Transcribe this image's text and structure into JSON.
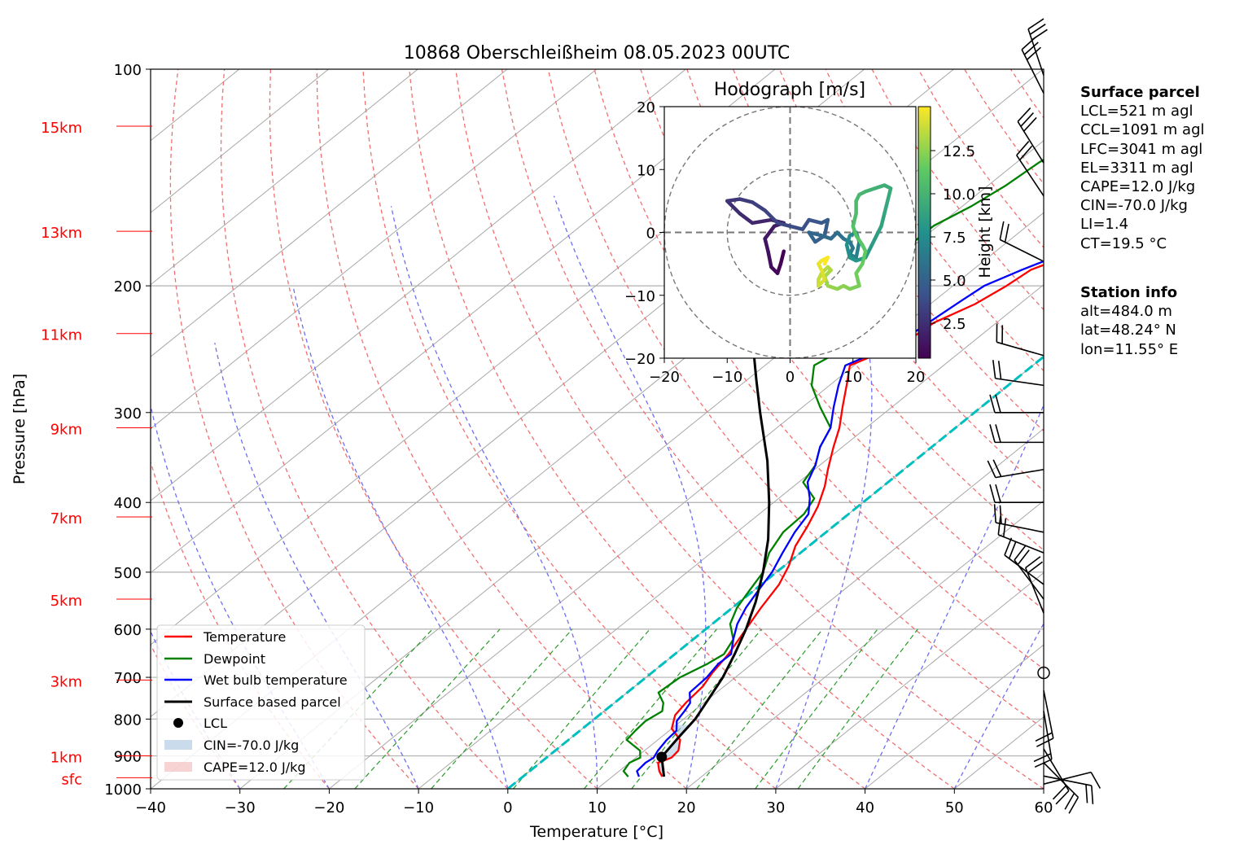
{
  "chart_data": {
    "type": "skew-t",
    "title": "10868 Oberschleißheim 08.05.2023 00UTC",
    "xlabel": "Temperature [°C]",
    "ylabel": "Pressure [hPa]",
    "xlim": [
      -40,
      60
    ],
    "ylim": [
      1000,
      100
    ],
    "log_y": true,
    "grid": true,
    "x_ticks": [
      "−40",
      "−30",
      "−20",
      "−10",
      "0",
      "10",
      "20",
      "30",
      "40",
      "50",
      "60"
    ],
    "y_ticks": [
      {
        "p": 100,
        "label": "100"
      },
      {
        "p": 200,
        "label": "200"
      },
      {
        "p": 300,
        "label": "300"
      },
      {
        "p": 400,
        "label": "400"
      },
      {
        "p": 500,
        "label": "500"
      },
      {
        "p": 600,
        "label": "600"
      },
      {
        "p": 700,
        "label": "700"
      },
      {
        "p": 800,
        "label": "800"
      },
      {
        "p": 900,
        "label": "900"
      },
      {
        "p": 1000,
        "label": "1000"
      }
    ],
    "height_labels": [
      {
        "p": 965,
        "label": "sfc"
      },
      {
        "p": 900,
        "label": "1km"
      },
      {
        "p": 706,
        "label": "3km"
      },
      {
        "p": 545,
        "label": "5km"
      },
      {
        "p": 419,
        "label": "7km"
      },
      {
        "p": 315,
        "label": "9km"
      },
      {
        "p": 233,
        "label": "11km"
      },
      {
        "p": 168,
        "label": "13km"
      },
      {
        "p": 120,
        "label": "15km"
      }
    ],
    "series": [
      {
        "name": "Temperature",
        "color": "#ff0000",
        "points": [
          [
            15.6,
            962
          ],
          [
            14.5,
            945
          ],
          [
            13.2,
            920
          ],
          [
            14.0,
            905
          ],
          [
            13.8,
            885
          ],
          [
            12.5,
            855
          ],
          [
            10.0,
            825
          ],
          [
            8.5,
            790
          ],
          [
            8.0,
            760
          ],
          [
            7.6,
            720
          ],
          [
            6.8,
            690
          ],
          [
            6.0,
            650
          ],
          [
            4.5,
            600
          ],
          [
            3.2,
            560
          ],
          [
            2.0,
            520
          ],
          [
            0.5,
            490
          ],
          [
            -1.5,
            460
          ],
          [
            -3.0,
            430
          ],
          [
            -4.5,
            405
          ],
          [
            -6.5,
            380
          ],
          [
            -8.5,
            360
          ],
          [
            -11.0,
            335
          ],
          [
            -13.0,
            315
          ],
          [
            -15.5,
            295
          ],
          [
            -18.5,
            272
          ],
          [
            -20.5,
            258
          ],
          [
            -17.5,
            240
          ],
          [
            -17.0,
            225
          ],
          [
            -15.0,
            212
          ],
          [
            -14.0,
            200
          ],
          [
            -13.5,
            190
          ],
          [
            -10.0,
            177
          ],
          [
            -7.0,
            168
          ],
          [
            -5.5,
            160
          ],
          [
            -4.0,
            150
          ],
          [
            -2.0,
            138
          ],
          [
            -0.5,
            128
          ],
          [
            1.0,
            118
          ],
          [
            2.5,
            111
          ],
          [
            4.8,
            106
          ]
        ]
      },
      {
        "name": "Dewpoint",
        "color": "#008000",
        "points": [
          [
            11.8,
            962
          ],
          [
            10.5,
            945
          ],
          [
            10.0,
            920
          ],
          [
            10.5,
            905
          ],
          [
            9.5,
            885
          ],
          [
            6.5,
            855
          ],
          [
            6.2,
            830
          ],
          [
            6.0,
            805
          ],
          [
            6.5,
            780
          ],
          [
            5.5,
            760
          ],
          [
            3.5,
            735
          ],
          [
            3.8,
            700
          ],
          [
            5.0,
            670
          ],
          [
            5.5,
            650
          ],
          [
            4.5,
            620
          ],
          [
            2.0,
            590
          ],
          [
            0.5,
            560
          ],
          [
            -0.5,
            530
          ],
          [
            -1.5,
            500
          ],
          [
            -3.5,
            470
          ],
          [
            -4.8,
            440
          ],
          [
            -5.0,
            415
          ],
          [
            -6.0,
            395
          ],
          [
            -9.5,
            375
          ],
          [
            -10.5,
            355
          ],
          [
            -12.5,
            335
          ],
          [
            -14.0,
            315
          ],
          [
            -18.0,
            295
          ],
          [
            -22.0,
            275
          ],
          [
            -24.5,
            258
          ],
          [
            -23.5,
            245
          ],
          [
            -22.5,
            235
          ],
          [
            -23.0,
            222
          ],
          [
            -27.5,
            208
          ],
          [
            -30.0,
            200
          ],
          [
            -30.0,
            190
          ],
          [
            -30.5,
            177
          ],
          [
            -30.5,
            165
          ],
          [
            -29.0,
            155
          ],
          [
            -28.0,
            145
          ],
          [
            -27.5,
            135
          ],
          [
            -26.5,
            125
          ],
          [
            -25.5,
            118
          ],
          [
            -25.0,
            115
          ]
        ]
      },
      {
        "name": "Wet bulb temperature",
        "color": "#0000ff",
        "points": [
          [
            13.0,
            962
          ],
          [
            12.0,
            945
          ],
          [
            11.8,
            920
          ],
          [
            12.0,
            905
          ],
          [
            11.5,
            885
          ],
          [
            11.0,
            855
          ],
          [
            10.8,
            830
          ],
          [
            9.5,
            805
          ],
          [
            9.0,
            780
          ],
          [
            8.5,
            760
          ],
          [
            7.0,
            735
          ],
          [
            6.8,
            700
          ],
          [
            6.2,
            670
          ],
          [
            6.3,
            650
          ],
          [
            4.5,
            620
          ],
          [
            2.8,
            590
          ],
          [
            1.5,
            560
          ],
          [
            0.5,
            530
          ],
          [
            -0.5,
            500
          ],
          [
            -2.0,
            470
          ],
          [
            -3.5,
            440
          ],
          [
            -4.5,
            415
          ],
          [
            -6.5,
            395
          ],
          [
            -9.0,
            375
          ],
          [
            -10.5,
            355
          ],
          [
            -12.5,
            335
          ],
          [
            -14.0,
            315
          ],
          [
            -16.5,
            295
          ],
          [
            -19.0,
            275
          ],
          [
            -21.0,
            258
          ],
          [
            -19.0,
            245
          ],
          [
            -18.0,
            235
          ],
          [
            -17.5,
            222
          ],
          [
            -17.0,
            210
          ],
          [
            -16.5,
            200
          ],
          [
            -14.5,
            190
          ],
          [
            -11.5,
            178
          ],
          [
            -8.0,
            168
          ],
          [
            -6.0,
            158
          ],
          [
            -4.0,
            148
          ],
          [
            -2.0,
            138
          ],
          [
            -0.5,
            128
          ],
          [
            1.0,
            118
          ],
          [
            2.5,
            111
          ],
          [
            4.5,
            106
          ]
        ]
      },
      {
        "name": "Surface based parcel",
        "color": "#000000",
        "points": [
          [
            15.8,
            962
          ],
          [
            12.8,
            903
          ],
          [
            12.0,
            850
          ],
          [
            11.3,
            800
          ],
          [
            10.0,
            750
          ],
          [
            8.6,
            700
          ],
          [
            6.7,
            650
          ],
          [
            4.5,
            600
          ],
          [
            1.8,
            550
          ],
          [
            -1.5,
            500
          ],
          [
            -5.5,
            450
          ],
          [
            -10.5,
            400
          ],
          [
            -16.5,
            350
          ],
          [
            -24.0,
            300
          ],
          [
            -29.0,
            270
          ],
          [
            -34.5,
            240
          ],
          [
            -40.0,
            210
          ],
          [
            -45.5,
            185
          ],
          [
            -51.5,
            160
          ],
          [
            -58.0,
            135
          ],
          [
            -62.0,
            120
          ]
        ]
      }
    ],
    "lcl": {
      "name": "LCL",
      "t": 12.8,
      "p": 903
    },
    "legend": {
      "placement": "lower-left",
      "entries": [
        "Temperature",
        "Dewpoint",
        "Wet bulb temperature",
        "Surface based parcel",
        "LCL",
        "CIN=-70.0 J/kg",
        "CAPE=12.0 J/kg"
      ]
    },
    "shaded": {
      "cin": {
        "label": "CIN=-70.0 J/kg",
        "color": "#a7c5e0"
      },
      "cape": {
        "label": "CAPE=12.0 J/kg",
        "color": "#f4b6b6"
      }
    },
    "isotherm_0": {
      "color": "#00bfbf"
    },
    "hodograph": {
      "title": "Hodograph [m/s]",
      "xlim": [
        -20,
        20
      ],
      "ylim": [
        -20,
        20
      ],
      "ticks": [
        "−20",
        "−10",
        "0",
        "10",
        "20"
      ],
      "rings": [
        10,
        20
      ],
      "colorbar_label": "Height [km]",
      "colorbar_ticks": [
        "2.5",
        "5.0",
        "7.5",
        "10.0",
        "12.5"
      ],
      "points": [
        [
          -1,
          -3
        ],
        [
          -1.5,
          -5
        ],
        [
          -2,
          -6.5
        ],
        [
          -3,
          -5.5
        ],
        [
          -3.5,
          -3
        ],
        [
          -4,
          -1
        ],
        [
          -2.5,
          1
        ],
        [
          -1,
          1.5
        ],
        [
          -3,
          2
        ],
        [
          -6,
          1.5
        ],
        [
          -8,
          3
        ],
        [
          -9.5,
          4.5
        ],
        [
          -10,
          5
        ],
        [
          -8,
          5.3
        ],
        [
          -6,
          4.8
        ],
        [
          -4,
          3.5
        ],
        [
          -2,
          1.5
        ],
        [
          0,
          1
        ],
        [
          2,
          0.5
        ],
        [
          3,
          2
        ],
        [
          5,
          1.5
        ],
        [
          6,
          2
        ],
        [
          5.5,
          -0.5
        ],
        [
          4,
          -1.5
        ],
        [
          3,
          0
        ],
        [
          5,
          -0.5
        ],
        [
          6.5,
          -1
        ],
        [
          7.5,
          0
        ],
        [
          8.5,
          -1
        ],
        [
          9.5,
          -1.5
        ],
        [
          10,
          -2.5
        ],
        [
          9.5,
          -3.5
        ],
        [
          10.5,
          -4
        ],
        [
          11,
          -1.5
        ],
        [
          10.5,
          0
        ],
        [
          9.5,
          -0.5
        ],
        [
          9,
          -2
        ],
        [
          9.5,
          -4
        ],
        [
          10.5,
          -4.5
        ],
        [
          12,
          -4
        ],
        [
          13,
          -2
        ],
        [
          14,
          0
        ],
        [
          14.5,
          1
        ],
        [
          15,
          3
        ],
        [
          15.5,
          5
        ],
        [
          16,
          7
        ],
        [
          15,
          7.5
        ],
        [
          13.5,
          7
        ],
        [
          12,
          6.5
        ],
        [
          11,
          6
        ],
        [
          10.5,
          5
        ],
        [
          10.5,
          3
        ],
        [
          10,
          1
        ],
        [
          10.5,
          -0.5
        ],
        [
          11.5,
          -2
        ],
        [
          12,
          -3
        ],
        [
          11.5,
          -5
        ],
        [
          10.5,
          -6.5
        ],
        [
          11,
          -8.5
        ],
        [
          9.5,
          -9
        ],
        [
          8.5,
          -8.5
        ],
        [
          7.5,
          -9
        ],
        [
          6,
          -8.5
        ],
        [
          5.5,
          -7
        ],
        [
          6.5,
          -6
        ],
        [
          6,
          -5.5
        ],
        [
          5,
          -6.5
        ],
        [
          4.5,
          -7.5
        ],
        [
          4.5,
          -8.5
        ],
        [
          5.5,
          -7.5
        ],
        [
          5,
          -6
        ],
        [
          4.5,
          -5
        ],
        [
          5,
          -4.5
        ],
        [
          6,
          -4
        ],
        [
          5.5,
          -5
        ]
      ]
    },
    "wind_barbs": [
      {
        "p": 102,
        "u": -3,
        "v": 9
      },
      {
        "p": 108,
        "u": -4,
        "v": 8
      },
      {
        "p": 135,
        "u": -5,
        "v": 8
      },
      {
        "p": 150,
        "u": -4,
        "v": 6
      },
      {
        "p": 185,
        "u": -6,
        "v": 3
      },
      {
        "p": 250,
        "u": -7,
        "v": 2
      },
      {
        "p": 275,
        "u": -7,
        "v": 1
      },
      {
        "p": 300,
        "u": -6,
        "v": 0
      },
      {
        "p": 330,
        "u": -6,
        "v": 0
      },
      {
        "p": 360,
        "u": -6,
        "v": -1
      },
      {
        "p": 400,
        "u": -5,
        "v": 0
      },
      {
        "p": 440,
        "u": -5,
        "v": 1
      },
      {
        "p": 470,
        "u": -5,
        "v": 2
      },
      {
        "p": 520,
        "u": -4,
        "v": 3
      },
      {
        "p": 545,
        "u": -3,
        "v": 4
      },
      {
        "p": 570,
        "u": -2,
        "v": 5
      },
      {
        "p": 690,
        "u": 0,
        "v": 0
      },
      {
        "p": 730,
        "u": 1,
        "v": -5
      },
      {
        "p": 780,
        "u": 1,
        "v": -6
      },
      {
        "p": 880,
        "u": 3,
        "v": -5
      },
      {
        "p": 920,
        "u": 4,
        "v": -4
      },
      {
        "p": 960,
        "u": 5,
        "v": -1
      },
      {
        "p": 985,
        "u": 4,
        "v": 1
      }
    ]
  },
  "surface_parcel": {
    "heading": "Surface parcel",
    "lines": [
      "LCL=521 m agl",
      "CCL=1091 m agl",
      "LFC=3041 m agl",
      "EL=3311 m agl",
      "CAPE=12.0 J/kg",
      "CIN=-70.0 J/kg",
      "LI=1.4",
      "CT=19.5 °C"
    ]
  },
  "station_info": {
    "heading": "Station info",
    "lines": [
      "alt=484.0 m",
      "lat=48.24° N",
      "lon=11.55° E"
    ]
  }
}
